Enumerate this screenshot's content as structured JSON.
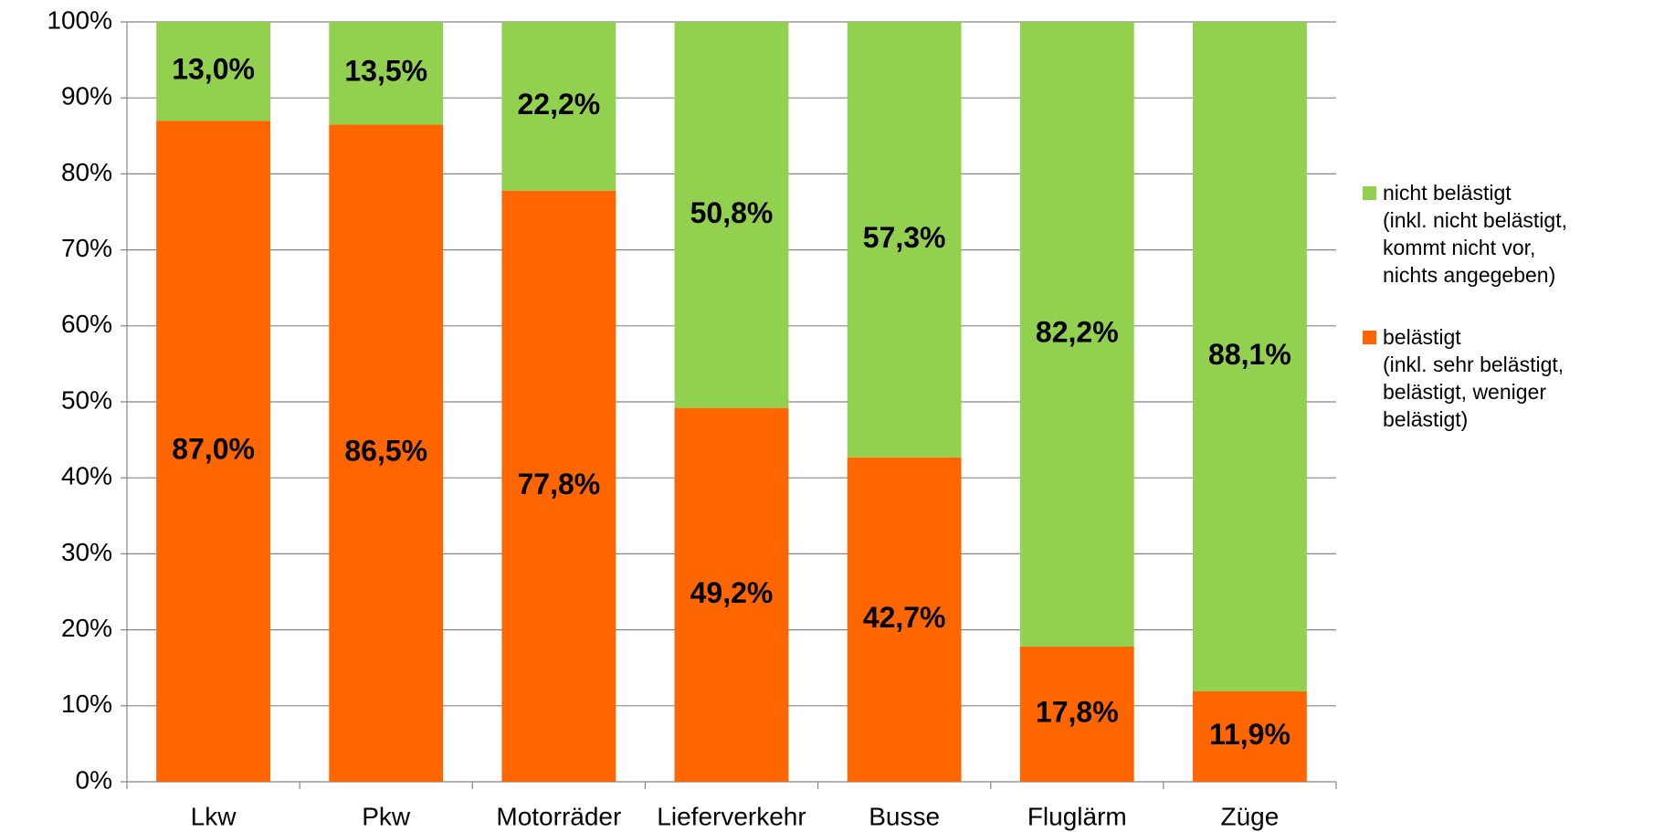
{
  "chart_data": {
    "type": "stacked_bar",
    "categories": [
      "Lkw",
      "Pkw",
      "Motorräder",
      "Lieferverkehr",
      "Busse",
      "Fluglärm",
      "Züge"
    ],
    "series": [
      {
        "name": "belästigt\n(inkl. sehr belästigt,\nbelästigt, weniger\nbelästigt)",
        "color": "#ff6600",
        "values": [
          87.0,
          86.5,
          77.8,
          49.2,
          42.7,
          17.8,
          11.9
        ],
        "value_labels": [
          "87,0%",
          "86,5%",
          "77,8%",
          "49,2%",
          "42,7%",
          "17,8%",
          "11,9%"
        ]
      },
      {
        "name": "nicht belästigt\n(inkl. nicht belästigt,\nkommt nicht vor,\nnichts angegeben)",
        "color": "#92d050",
        "values": [
          13.0,
          13.5,
          22.2,
          50.8,
          57.3,
          82.2,
          88.1
        ],
        "value_labels": [
          "13,0%",
          "13,5%",
          "22,2%",
          "50,8%",
          "57,3%",
          "82,2%",
          "88,1%"
        ]
      }
    ],
    "ylim": [
      0,
      100
    ],
    "yticks": [
      {
        "value": 0,
        "label": "0%"
      },
      {
        "value": 10,
        "label": "10%"
      },
      {
        "value": 20,
        "label": "20%"
      },
      {
        "value": 30,
        "label": "30%"
      },
      {
        "value": 40,
        "label": "40%"
      },
      {
        "value": 50,
        "label": "50%"
      },
      {
        "value": 60,
        "label": "60%"
      },
      {
        "value": 70,
        "label": "70%"
      },
      {
        "value": 80,
        "label": "80%"
      },
      {
        "value": 90,
        "label": "90%"
      },
      {
        "value": 100,
        "label": "100%"
      }
    ],
    "grid": true,
    "legend": "right"
  }
}
